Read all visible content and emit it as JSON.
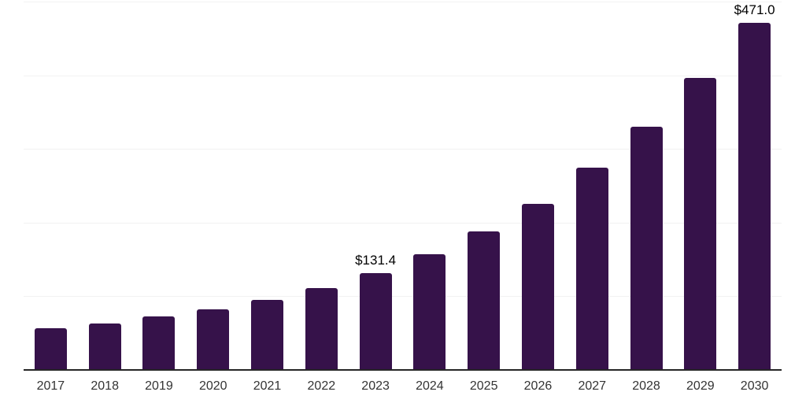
{
  "chart_data": {
    "type": "bar",
    "title": "",
    "xlabel": "",
    "ylabel": "",
    "categories": [
      "2017",
      "2018",
      "2019",
      "2020",
      "2021",
      "2022",
      "2023",
      "2024",
      "2025",
      "2026",
      "2027",
      "2028",
      "2029",
      "2030"
    ],
    "values": [
      56.3,
      63.4,
      72.6,
      81.9,
      94.6,
      110.8,
      131.4,
      156.8,
      188.2,
      225.5,
      274.2,
      330.1,
      396.4,
      471.0
    ],
    "bar_labels": [
      "",
      "",
      "",
      "",
      "",
      "",
      "$131.4",
      "",
      "",
      "",
      "",
      "",
      "",
      "$471.0"
    ],
    "ylim": [
      0,
      500
    ],
    "gridline_step": 100,
    "grid": true,
    "legend_position": "none",
    "y_tick_labels_visible": false,
    "colors": {
      "bar": "#36124a",
      "axis_line": "#262626",
      "gridline": "#f2f2f2",
      "value_label": "#000000",
      "tick_label": "#333333",
      "background": "#ffffff"
    }
  }
}
